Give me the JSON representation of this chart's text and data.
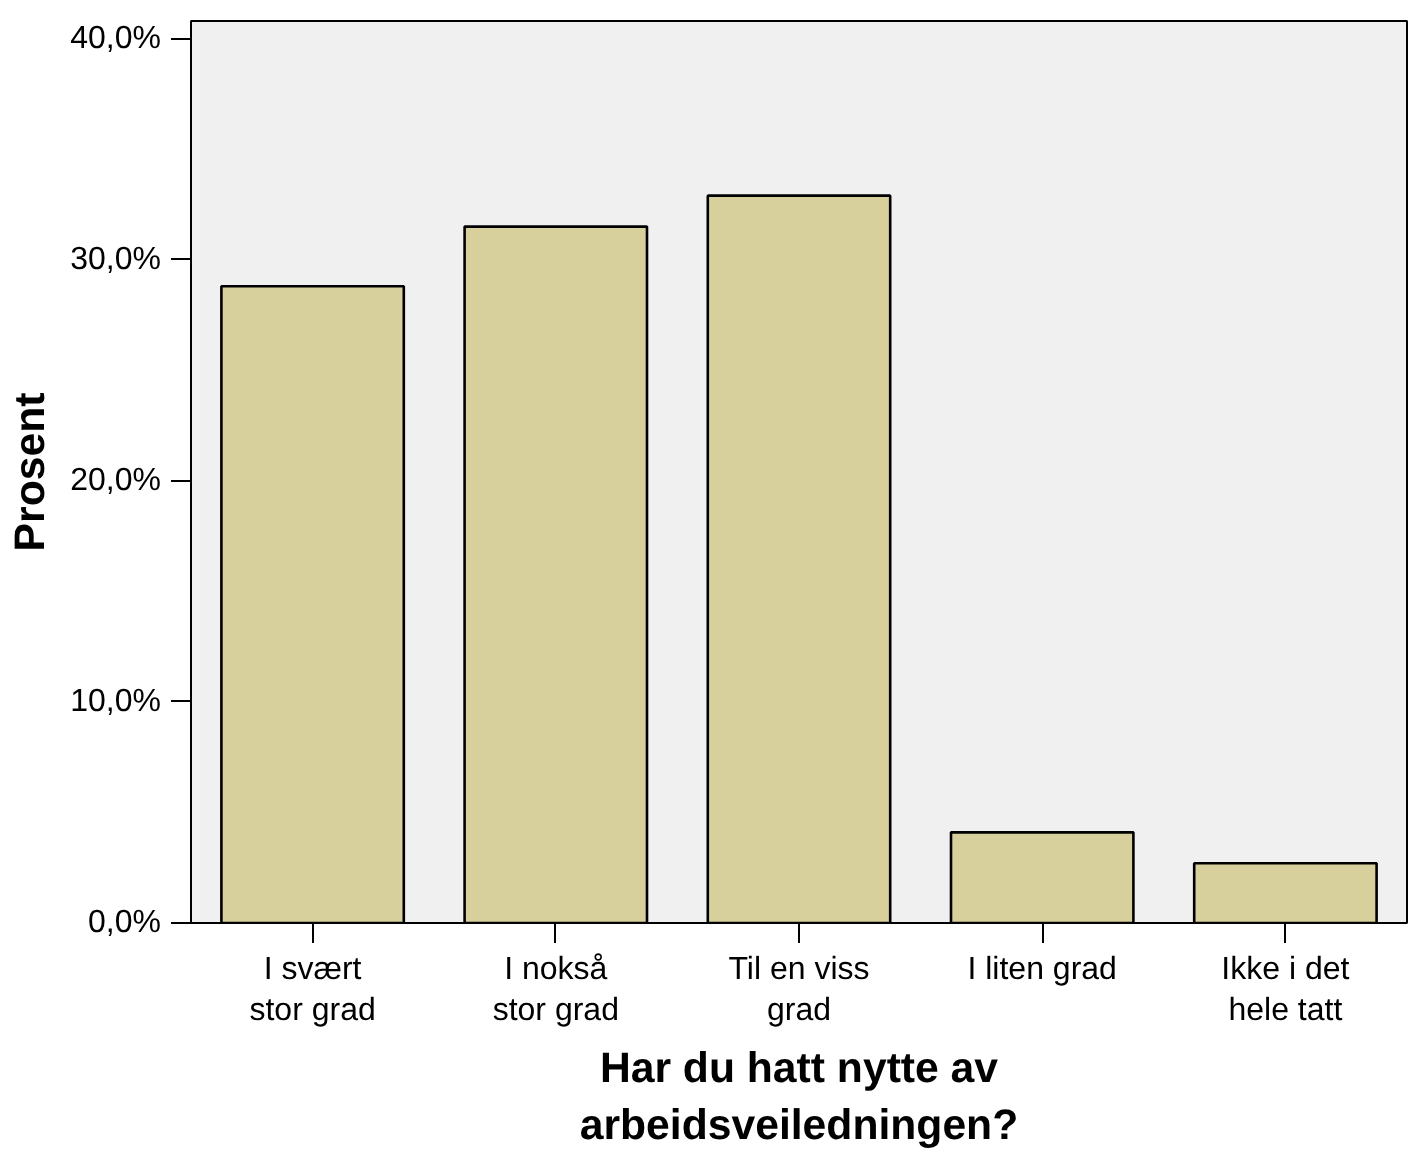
{
  "chart_data": {
    "type": "bar",
    "xlabel": "Har du hatt nytte av\narbeidsveiledningen?",
    "ylabel": "Prosent",
    "categories": [
      "I svært\nstor grad",
      "I nokså\nstor grad",
      "Til en viss\ngrad",
      "I liten grad",
      "Ikke i det\nhele tatt"
    ],
    "values": [
      28.8,
      31.5,
      32.9,
      4.1,
      2.7
    ],
    "color": "#d8d09c",
    "ylim": [
      0,
      40.8
    ],
    "yticks": [
      {
        "value": 0,
        "label": "0,0%"
      },
      {
        "value": 10,
        "label": "10,0%"
      },
      {
        "value": 20,
        "label": "20,0%"
      },
      {
        "value": 30,
        "label": "30,0%"
      },
      {
        "value": 40,
        "label": "40,0%"
      }
    ],
    "grid": false
  }
}
